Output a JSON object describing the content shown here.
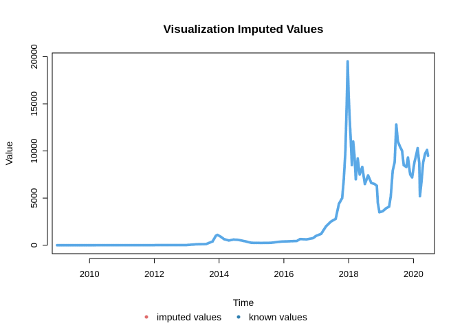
{
  "chart_data": {
    "type": "line",
    "title": "Visualization Imputed Values",
    "xlabel": "Time",
    "ylabel": "Value",
    "xlim": [
      2008.85,
      2020.65
    ],
    "ylim": [
      -900,
      20400
    ],
    "x_ticks": [
      2010,
      2012,
      2014,
      2016,
      2018,
      2020
    ],
    "y_ticks": [
      0,
      5000,
      10000,
      15000,
      20000
    ],
    "grid": false,
    "legend_position": "bottom-center",
    "legend": [
      {
        "name": "imputed values",
        "color": "#df6b6b"
      },
      {
        "name": "known values",
        "color": "#2f7fb0"
      }
    ],
    "line_color": "#000000",
    "point_color": "#5aa8e6",
    "series": [
      {
        "name": "known values",
        "points": [
          [
            2009.0,
            0
          ],
          [
            2010.0,
            0
          ],
          [
            2011.0,
            5
          ],
          [
            2012.0,
            8
          ],
          [
            2013.0,
            15
          ],
          [
            2013.3,
            100
          ],
          [
            2013.6,
            120
          ],
          [
            2013.8,
            400
          ],
          [
            2013.9,
            1000
          ],
          [
            2013.95,
            1100
          ],
          [
            2014.05,
            900
          ],
          [
            2014.15,
            650
          ],
          [
            2014.3,
            500
          ],
          [
            2014.45,
            600
          ],
          [
            2014.6,
            560
          ],
          [
            2014.8,
            420
          ],
          [
            2015.0,
            250
          ],
          [
            2015.3,
            240
          ],
          [
            2015.6,
            250
          ],
          [
            2015.9,
            380
          ],
          [
            2016.2,
            420
          ],
          [
            2016.4,
            450
          ],
          [
            2016.5,
            650
          ],
          [
            2016.7,
            620
          ],
          [
            2016.9,
            750
          ],
          [
            2017.0,
            1000
          ],
          [
            2017.15,
            1200
          ],
          [
            2017.3,
            2000
          ],
          [
            2017.45,
            2500
          ],
          [
            2017.6,
            2800
          ],
          [
            2017.7,
            4400
          ],
          [
            2017.8,
            5000
          ],
          [
            2017.85,
            7000
          ],
          [
            2017.9,
            10000
          ],
          [
            2017.94,
            15000
          ],
          [
            2017.97,
            19500
          ],
          [
            2018.0,
            16000
          ],
          [
            2018.03,
            13500
          ],
          [
            2018.06,
            11500
          ],
          [
            2018.1,
            8500
          ],
          [
            2018.14,
            11000
          ],
          [
            2018.18,
            9500
          ],
          [
            2018.22,
            7000
          ],
          [
            2018.28,
            9200
          ],
          [
            2018.34,
            7500
          ],
          [
            2018.42,
            8300
          ],
          [
            2018.5,
            6500
          ],
          [
            2018.6,
            7400
          ],
          [
            2018.7,
            6600
          ],
          [
            2018.8,
            6500
          ],
          [
            2018.87,
            6300
          ],
          [
            2018.9,
            4500
          ],
          [
            2018.95,
            3500
          ],
          [
            2019.05,
            3600
          ],
          [
            2019.15,
            3900
          ],
          [
            2019.25,
            4100
          ],
          [
            2019.3,
            5200
          ],
          [
            2019.36,
            7900
          ],
          [
            2019.42,
            8800
          ],
          [
            2019.47,
            12800
          ],
          [
            2019.52,
            11000
          ],
          [
            2019.58,
            10500
          ],
          [
            2019.65,
            10000
          ],
          [
            2019.7,
            8500
          ],
          [
            2019.78,
            8300
          ],
          [
            2019.83,
            9300
          ],
          [
            2019.9,
            7500
          ],
          [
            2019.96,
            7200
          ],
          [
            2020.03,
            8800
          ],
          [
            2020.08,
            9500
          ],
          [
            2020.13,
            10300
          ],
          [
            2020.18,
            8700
          ],
          [
            2020.2,
            5200
          ],
          [
            2020.25,
            6800
          ],
          [
            2020.3,
            8800
          ],
          [
            2020.36,
            9700
          ],
          [
            2020.42,
            10100
          ],
          [
            2020.45,
            9500
          ]
        ]
      }
    ]
  }
}
